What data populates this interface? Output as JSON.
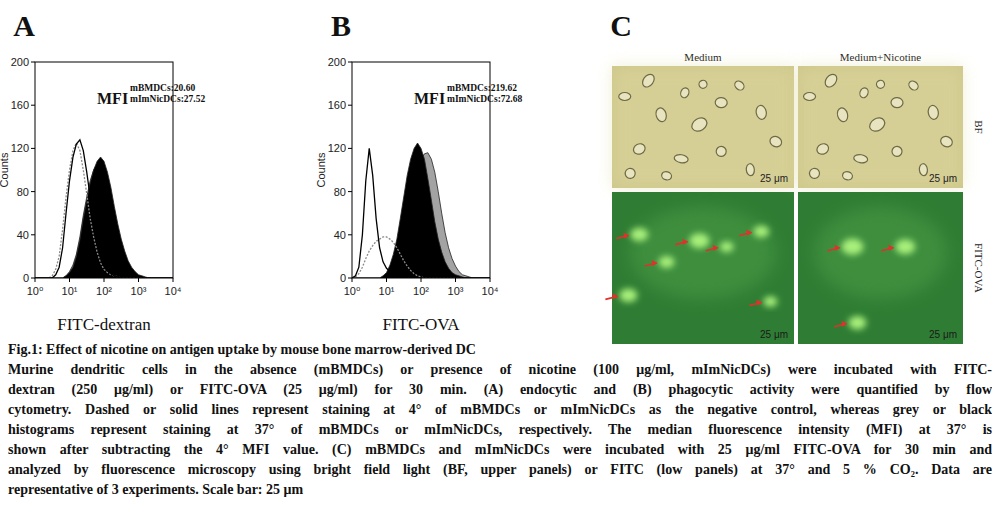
{
  "chart_data": [
    {
      "type": "line",
      "title": "A",
      "x_label": "FITC-dextran",
      "y_label": "Counts",
      "log": "x",
      "xlim": [
        1,
        10000
      ],
      "ylim": [
        0,
        200
      ],
      "xticks": [
        {
          "value": 1,
          "label": "10⁰"
        },
        {
          "value": 10,
          "label": "10¹"
        },
        {
          "value": 100,
          "label": "10²"
        },
        {
          "value": 1000,
          "label": "10³"
        },
        {
          "value": 10000,
          "label": "10⁴"
        }
      ],
      "yticks": [
        0,
        40,
        80,
        120,
        160,
        200
      ],
      "annotations": [
        "MFI",
        "mBMDCs:20.60",
        "mImNicDCs:27.52"
      ],
      "x": [
        1,
        1.26,
        1.58,
        2,
        2.51,
        3.16,
        3.98,
        5.01,
        6.31,
        7.94,
        10,
        12.6,
        15.8,
        20,
        25.1,
        31.6,
        39.8,
        50.1,
        63.1,
        79.4,
        100,
        126,
        158,
        200,
        251,
        316,
        398,
        501,
        631,
        794,
        1000,
        1259,
        1585,
        1995,
        2512,
        3162,
        3981,
        5012,
        6310,
        7943,
        10000
      ],
      "series": [
        {
          "type": "area",
          "color": "#a3a3a3",
          "values": [
            0,
            0,
            0,
            0,
            0,
            0,
            0,
            0,
            0,
            2,
            6,
            12,
            22,
            38,
            58,
            75,
            90,
            100,
            105,
            104,
            96,
            84,
            68,
            52,
            38,
            26,
            17,
            11,
            7,
            4,
            2,
            1,
            0,
            0,
            0,
            0,
            0,
            0,
            0,
            0,
            0
          ]
        },
        {
          "type": "area",
          "color": "#000000",
          "values": [
            0,
            0,
            0,
            0,
            0,
            0,
            0,
            0,
            0,
            2,
            5,
            10,
            20,
            35,
            55,
            72,
            88,
            100,
            108,
            112,
            108,
            98,
            84,
            66,
            50,
            36,
            25,
            16,
            10,
            6,
            3,
            2,
            1,
            0,
            0,
            0,
            0,
            0,
            0,
            0,
            0
          ]
        },
        {
          "type": "line",
          "color": "#8a8a8a",
          "line_style": "dashed",
          "values": [
            0,
            0,
            0,
            0,
            0,
            2,
            8,
            20,
            45,
            75,
            100,
            118,
            125,
            118,
            100,
            78,
            55,
            38,
            24,
            14,
            8,
            5,
            3,
            2,
            1,
            0,
            0,
            0,
            0,
            0,
            0,
            0,
            0,
            0,
            0,
            0,
            0,
            0,
            0,
            0,
            0
          ]
        },
        {
          "type": "line",
          "color": "#000000",
          "line_style": "solid",
          "values": [
            0,
            0,
            0,
            0,
            0,
            0,
            3,
            10,
            28,
            60,
            90,
            112,
            124,
            128,
            118,
            98,
            75,
            52,
            34,
            20,
            12,
            7,
            4,
            2,
            1,
            0,
            0,
            0,
            0,
            0,
            0,
            0,
            0,
            0,
            0,
            0,
            0,
            0,
            0,
            0,
            0
          ]
        }
      ]
    },
    {
      "type": "line",
      "title": "B",
      "x_label": "FITC-OVA",
      "y_label": "Counts",
      "log": "x",
      "xlim": [
        1,
        10000
      ],
      "ylim": [
        0,
        200
      ],
      "xticks": [
        {
          "value": 1,
          "label": "10⁰"
        },
        {
          "value": 10,
          "label": "10¹"
        },
        {
          "value": 100,
          "label": "10²"
        },
        {
          "value": 1000,
          "label": "10³"
        },
        {
          "value": 10000,
          "label": "10⁴"
        }
      ],
      "yticks": [
        0,
        40,
        80,
        120,
        160,
        200
      ],
      "annotations": [
        "MFI",
        "mBMDCs:219.62",
        "mImNicDCs:72.68"
      ],
      "x": [
        1,
        1.26,
        1.58,
        2,
        2.51,
        3.16,
        3.98,
        5.01,
        6.31,
        7.94,
        10,
        12.6,
        15.8,
        20,
        25.1,
        31.6,
        39.8,
        50.1,
        63.1,
        79.4,
        100,
        126,
        158,
        200,
        251,
        316,
        398,
        501,
        631,
        794,
        1000,
        1259,
        1585,
        1995,
        2512,
        3162,
        3981,
        5012,
        6310,
        7943,
        10000
      ],
      "series": [
        {
          "type": "area",
          "color": "#a3a3a3",
          "values": [
            0,
            0,
            0,
            0,
            0,
            0,
            0,
            0,
            0,
            0,
            2,
            5,
            10,
            18,
            30,
            45,
            62,
            78,
            92,
            102,
            110,
            115,
            116,
            110,
            98,
            80,
            60,
            42,
            28,
            18,
            11,
            6,
            3,
            2,
            1,
            0,
            0,
            0,
            0,
            0,
            0
          ]
        },
        {
          "type": "area",
          "color": "#000000",
          "values": [
            0,
            0,
            0,
            0,
            0,
            0,
            0,
            0,
            0,
            2,
            5,
            12,
            22,
            36,
            55,
            75,
            95,
            110,
            120,
            125,
            120,
            110,
            92,
            72,
            52,
            36,
            24,
            15,
            9,
            5,
            3,
            2,
            1,
            0,
            0,
            0,
            0,
            0,
            0,
            0,
            0
          ]
        },
        {
          "type": "line",
          "color": "#8a8a8a",
          "line_style": "dashed",
          "values": [
            0,
            1,
            4,
            10,
            18,
            25,
            30,
            34,
            36,
            38,
            38,
            36,
            33,
            28,
            22,
            16,
            11,
            7,
            4,
            2,
            1,
            0,
            0,
            0,
            0,
            0,
            0,
            0,
            0,
            0,
            0,
            0,
            0,
            0,
            0,
            0,
            0,
            0,
            0,
            0,
            0
          ]
        },
        {
          "type": "line",
          "color": "#000000",
          "line_style": "solid",
          "values": [
            0,
            2,
            10,
            40,
            90,
            120,
            95,
            55,
            28,
            15,
            9,
            6,
            4,
            3,
            2,
            1,
            0,
            0,
            0,
            0,
            0,
            0,
            0,
            0,
            0,
            0,
            0,
            0,
            0,
            0,
            0,
            0,
            0,
            0,
            0,
            0,
            0,
            0,
            0,
            0,
            0
          ]
        }
      ]
    }
  ],
  "panel_c": {
    "label": "C",
    "columns": [
      "Medium",
      "Medium+Nicotine"
    ],
    "rows": [
      "BF",
      "FITC-OVA"
    ],
    "scale_bar": "25 μm"
  },
  "caption": {
    "title": "Fig.1: Effect of nicotine on antigen uptake by mouse bone marrow-derived DC",
    "lines": [
      "Murine dendritic cells in the absence (mBMDCs) or presence of nicotine (100 μg/ml, mImNicDCs) were incubated with FITC-",
      "dextran (250 μg/ml) or FITC-OVA (25 μg/ml) for 30 min. (A) endocytic and (B) phagocytic activity were quantified by flow",
      "cytometry. Dashed or solid lines represent staining at 4° of mBMDCs or mImNicDCs as the negative control, whereas grey or black",
      "histograms represent staining at 37° of mBMDCs or mImNicDCs, respectively. The median fluorescence intensity (MFI) at 37° is",
      "shown after subtracting the 4° MFI value. (C) mBMDCs and mImNicDCs were incubated with 25 μg/ml FITC-OVA for 30 min and",
      "analyzed by fluorescence microscopy using bright field light (BF, upper panels) or FITC (low panels) at 37° and 5 % CO₂. Data are",
      "representative of 3 experiments. Scale bar: 25 μm"
    ]
  }
}
